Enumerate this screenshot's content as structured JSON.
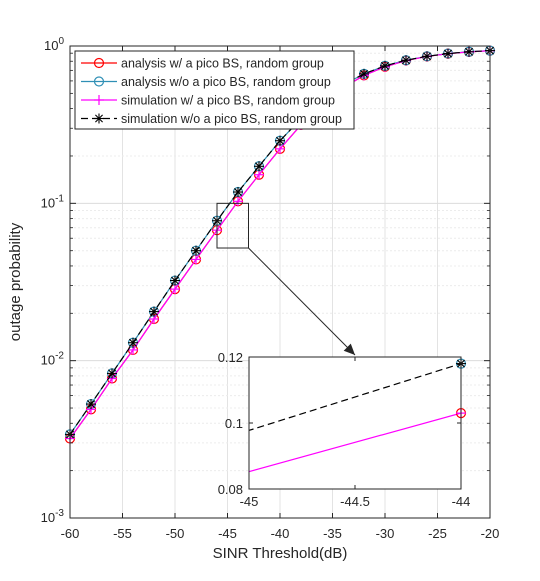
{
  "chart_data": {
    "type": "line",
    "title": "",
    "xlabel": "SINR Threshold(dB)",
    "ylabel": "outage probability",
    "xlim": [
      -60,
      -20
    ],
    "ylim": [
      0.001,
      1
    ],
    "yscale": "log",
    "grid": "major and minor",
    "legend_position": "top-left",
    "x_ticks": [
      "-60",
      "-55",
      "-50",
      "-45",
      "-40",
      "-35",
      "-30",
      "-25",
      "-20"
    ],
    "y_ticks": [
      {
        "base": "10",
        "exp": "-3"
      },
      {
        "base": "10",
        "exp": "-2"
      },
      {
        "base": "10",
        "exp": "-1"
      },
      {
        "base": "10",
        "exp": "0"
      }
    ],
    "x": [
      -60,
      -58,
      -56,
      -54,
      -52,
      -50,
      -48,
      -46,
      -44,
      -42,
      -40,
      -38,
      -36,
      -34,
      -32,
      -30,
      -28,
      -26,
      -24,
      -22,
      -20
    ],
    "series": [
      {
        "name": "analysis w/ a pico BS, random group",
        "color": "#ff0000",
        "dash": "solid",
        "marker": "circle",
        "values": [
          0.0032,
          0.0049,
          0.0077,
          0.0117,
          0.0184,
          0.0285,
          0.044,
          0.0675,
          0.103,
          0.152,
          0.222,
          0.315,
          0.425,
          0.543,
          0.65,
          0.738,
          0.808,
          0.858,
          0.894,
          0.918,
          0.934
        ]
      },
      {
        "name": "analysis w/o a pico BS, random group",
        "color": "#2f8fb5",
        "dash": "solid",
        "marker": "circle",
        "values": [
          0.0034,
          0.0053,
          0.0083,
          0.013,
          0.0205,
          0.0323,
          0.05,
          0.0775,
          0.118,
          0.172,
          0.25,
          0.345,
          0.455,
          0.565,
          0.665,
          0.748,
          0.812,
          0.86,
          0.895,
          0.919,
          0.935
        ]
      },
      {
        "name": "simulation w/ a pico BS, random group",
        "color": "#ff00ff",
        "dash": "solid",
        "marker": "plus",
        "values": [
          0.0032,
          0.0049,
          0.0077,
          0.0117,
          0.0184,
          0.0285,
          0.044,
          0.0675,
          0.103,
          0.152,
          0.222,
          0.315,
          0.425,
          0.543,
          0.65,
          0.738,
          0.808,
          0.858,
          0.894,
          0.918,
          0.934
        ]
      },
      {
        "name": "simulation w/o a pico BS, random group",
        "color": "#000000",
        "dash": "dashed",
        "marker": "asterisk",
        "values": [
          0.0034,
          0.0053,
          0.0083,
          0.013,
          0.0205,
          0.0323,
          0.05,
          0.0775,
          0.118,
          0.172,
          0.25,
          0.345,
          0.455,
          0.565,
          0.665,
          0.748,
          0.812,
          0.86,
          0.895,
          0.919,
          0.935
        ]
      }
    ],
    "inset": {
      "xlim": [
        -45,
        -44
      ],
      "ylim": [
        0.08,
        0.12
      ],
      "x_ticks": [
        "-45",
        "-44.5",
        "-44"
      ],
      "y_ticks": [
        "0.08",
        "0.1",
        "0.12"
      ],
      "zoom_box": {
        "x": [
          -46,
          -43
        ],
        "y": [
          0.052,
          0.1
        ]
      },
      "series": [
        {
          "name": "w/o",
          "color": "#000000",
          "dash": "dashed",
          "marker": "asterisk",
          "x": [
            -46,
            -44
          ],
          "values": [
            0.0775,
            0.118
          ]
        },
        {
          "name": "w/",
          "color": "#ff00ff",
          "dash": "solid",
          "marker": "circle",
          "x": [
            -46,
            -44
          ],
          "values": [
            0.0675,
            0.103
          ]
        }
      ]
    }
  }
}
